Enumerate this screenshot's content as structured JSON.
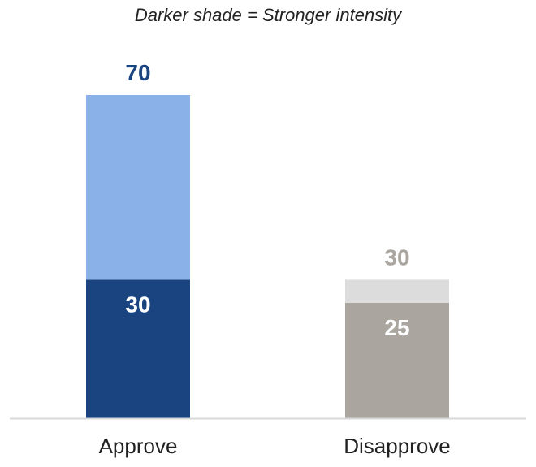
{
  "chart_data": {
    "type": "bar",
    "subtitle": "Darker shade = Stronger intensity",
    "categories": [
      "Approve",
      "Disapprove"
    ],
    "stacked": true,
    "series": [
      {
        "values": [
          30,
          25
        ],
        "colors": [
          "#1a4480",
          "#aaa69f"
        ]
      },
      {
        "values": [
          40,
          5
        ],
        "colors": [
          "#8ab2e8",
          "#dcdcdc"
        ]
      }
    ],
    "totals": [
      70,
      30
    ],
    "total_label_colors": [
      "#1a4480",
      "#aaa69f"
    ],
    "inner_label_color": "#ffffff",
    "ylim": [
      0,
      70
    ],
    "grid": false,
    "axis_line_color": "#d8d8d8"
  }
}
